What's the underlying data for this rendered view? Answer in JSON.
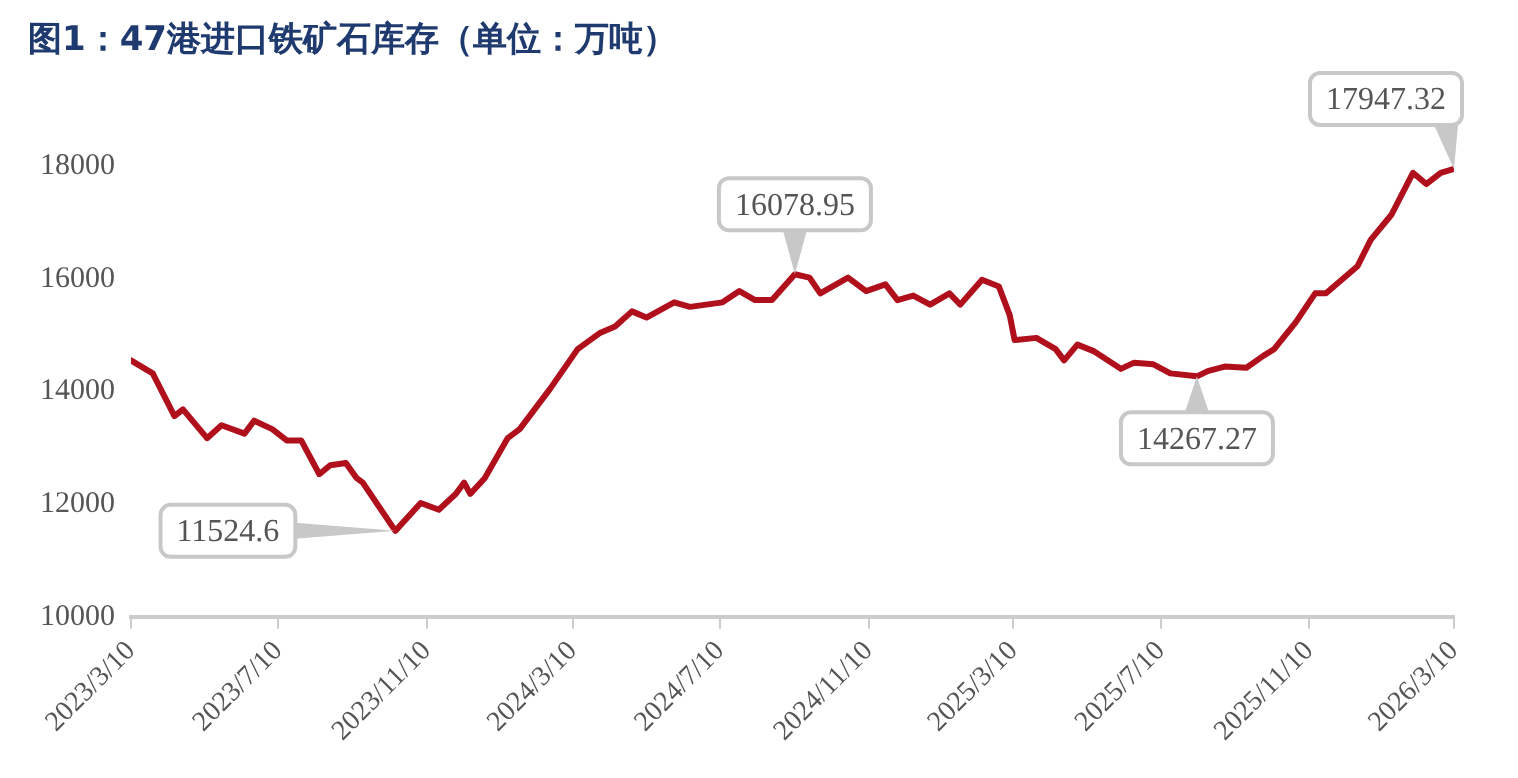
{
  "chart_data": {
    "type": "line",
    "title": "图1：47港进口铁矿石库存（单位：万吨）",
    "x": [
      "2023-03-10",
      "2023-03-28",
      "2023-04-15",
      "2023-04-22",
      "2023-05-12",
      "2023-05-24",
      "2023-06-12",
      "2023-06-20",
      "2023-07-05",
      "2023-07-17",
      "2023-07-29",
      "2023-08-13",
      "2023-08-22",
      "2023-09-04",
      "2023-09-13",
      "2023-09-18",
      "2023-10-15",
      "2023-11-05",
      "2023-11-20",
      "2023-12-04",
      "2023-12-11",
      "2023-12-16",
      "2023-12-28",
      "2024-01-16",
      "2024-01-26",
      "2024-02-20",
      "2024-03-14",
      "2024-04-01",
      "2024-04-14",
      "2024-04-28",
      "2024-05-10",
      "2024-06-02",
      "2024-06-15",
      "2024-07-12",
      "2024-07-26",
      "2024-08-08",
      "2024-08-22",
      "2024-09-10",
      "2024-09-22",
      "2024-10-01",
      "2024-10-24",
      "2024-11-08",
      "2024-11-24",
      "2024-12-04",
      "2024-12-17",
      "2024-12-31",
      "2025-01-16",
      "2025-01-25",
      "2025-02-12",
      "2025-02-26",
      "2025-03-07",
      "2025-03-11",
      "2025-03-29",
      "2025-04-14",
      "2025-04-21",
      "2025-05-02",
      "2025-05-16",
      "2025-06-07",
      "2025-06-18",
      "2025-07-04",
      "2025-07-18",
      "2025-08-09",
      "2025-08-18",
      "2025-09-01",
      "2025-09-19",
      "2025-10-03",
      "2025-10-12",
      "2025-10-30",
      "2025-11-15",
      "2025-11-24",
      "2025-12-20",
      "2025-12-31",
      "2026-01-17",
      "2026-02-04",
      "2026-02-15",
      "2026-02-27",
      "2026-03-10"
    ],
    "series": [
      {
        "color": "#b0101c",
        "values": [
          14550,
          14320,
          13560,
          13680,
          13170,
          13400,
          13250,
          13480,
          13330,
          13130,
          13130,
          12530,
          12690,
          12730,
          12460,
          12380,
          11524.6,
          12020,
          11900,
          12180,
          12380,
          12180,
          12460,
          13170,
          13330,
          14040,
          14750,
          15030,
          15150,
          15420,
          15310,
          15580,
          15500,
          15580,
          15780,
          15620,
          15620,
          16078.95,
          16020,
          15740,
          16020,
          15780,
          15900,
          15620,
          15700,
          15540,
          15740,
          15540,
          15980,
          15860,
          15350,
          14910,
          14950,
          14750,
          14550,
          14830,
          14710,
          14400,
          14510,
          14480,
          14320,
          14267.27,
          14360,
          14440,
          14420,
          14630,
          14750,
          15230,
          15740,
          15740,
          16220,
          16690,
          17130,
          17880,
          17680,
          17880,
          17947.32
        ]
      }
    ],
    "xlim": [
      "2023-03-10",
      "2026-03-10"
    ],
    "xticks": [
      {
        "value": "2023-03-10",
        "label": "2023/3/10"
      },
      {
        "value": "2023-07-10",
        "label": "2023/7/10"
      },
      {
        "value": "2023-11-10",
        "label": "2023/11/10"
      },
      {
        "value": "2024-03-10",
        "label": "2024/3/10"
      },
      {
        "value": "2024-07-10",
        "label": "2024/7/10"
      },
      {
        "value": "2024-11-10",
        "label": "2024/11/10"
      },
      {
        "value": "2025-03-10",
        "label": "2025/3/10"
      },
      {
        "value": "2025-07-10",
        "label": "2025/7/10"
      },
      {
        "value": "2025-11-10",
        "label": "2025/11/10"
      },
      {
        "value": "2026-03-10",
        "label": "2026/3/10"
      }
    ],
    "ylim": [
      10000,
      18000
    ],
    "yticks": [
      10000,
      12000,
      14000,
      16000,
      18000
    ],
    "grid": false,
    "legend": false,
    "marker": "none",
    "line_style": "solid",
    "annotations": [
      {
        "text": "11524.6",
        "x": "2023-10-15",
        "y": 11524.6
      },
      {
        "text": "16078.95",
        "x": "2024-09-10",
        "y": 16078.95
      },
      {
        "text": "14267.27",
        "x": "2025-08-09",
        "y": 14267.27
      },
      {
        "text": "17947.32",
        "x": "2026-03-10",
        "y": 17947.32
      }
    ]
  }
}
